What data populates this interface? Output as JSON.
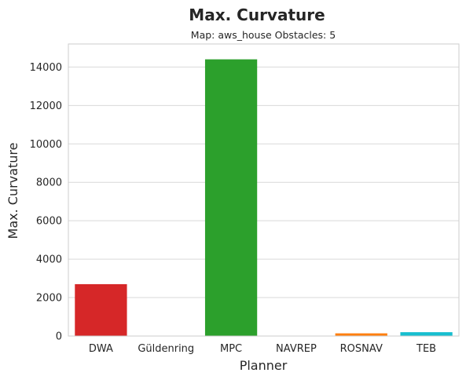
{
  "chart_data": {
    "type": "bar",
    "title": "Max. Curvature",
    "subtitle": "Map: aws_house Obstacles: 5",
    "xlabel": "Planner",
    "ylabel": "Max. Curvature",
    "categories": [
      "DWA",
      "Güldenring",
      "MPC",
      "NAVREP",
      "ROSNAV",
      "TEB"
    ],
    "values": [
      2700,
      0,
      14400,
      0,
      140,
      200
    ],
    "colors": [
      "#d62728",
      "#7f7f7f",
      "#2ca02c",
      "#7f7f7f",
      "#ff7f0e",
      "#17becf"
    ],
    "ylim": [
      0,
      15200
    ],
    "yticks": [
      0,
      2000,
      4000,
      6000,
      8000,
      10000,
      12000,
      14000
    ],
    "grid": true
  }
}
